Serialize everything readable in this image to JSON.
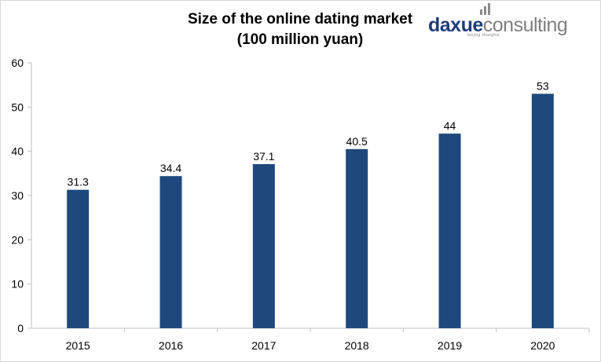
{
  "title_line1": "Size of the online dating market",
  "title_line2": "(100 million yuan)",
  "logo": {
    "part1": "daxue",
    "part2": "consulting",
    "tagline": "beijing shanghai"
  },
  "colors": {
    "bar": "#1f497d",
    "axis": "#bfbfbf",
    "brand_dark": "#1f3c7a",
    "brand_gray": "#7f7f7f"
  },
  "chart_data": {
    "type": "bar",
    "categories": [
      "2015",
      "2016",
      "2017",
      "2018",
      "2019",
      "2020"
    ],
    "values": [
      31.3,
      34.4,
      37.1,
      40.5,
      44,
      53
    ],
    "data_labels": [
      "31.3",
      "34.4",
      "37.1",
      "40.5",
      "44",
      "53"
    ],
    "ylim": [
      0,
      60
    ],
    "yticks": [
      "0",
      "10",
      "20",
      "30",
      "40",
      "50",
      "60"
    ],
    "grid": false,
    "legend": "none"
  }
}
